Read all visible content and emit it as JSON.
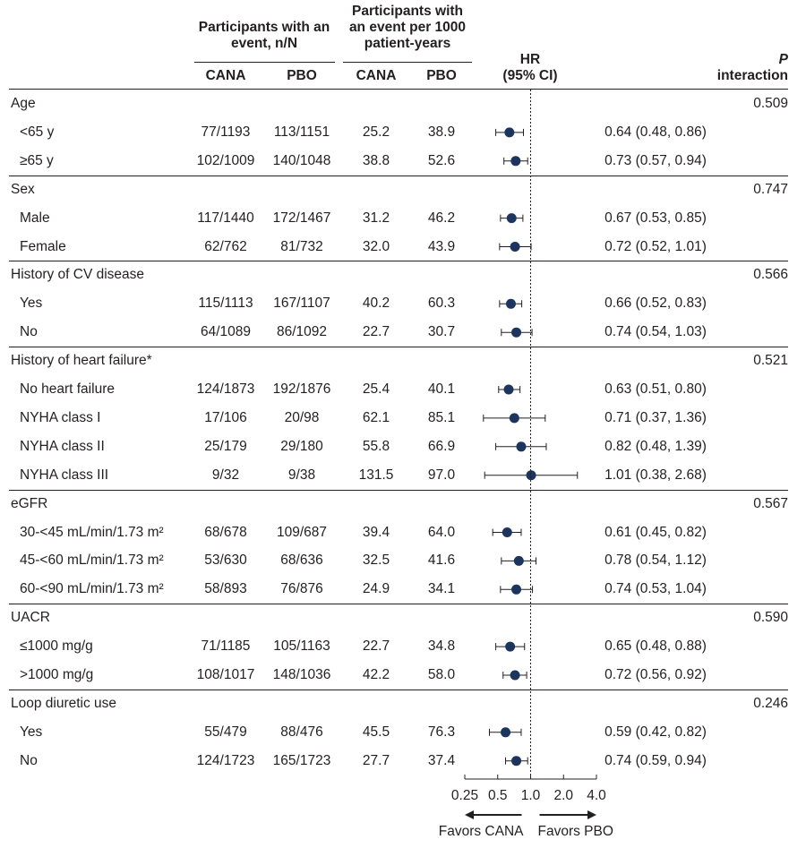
{
  "headers": {
    "group1": "Participants with an event, n/N",
    "group2": "Participants with an event per 1000 patient-years",
    "cana1": "CANA",
    "pbo1": "PBO",
    "cana2": "CANA",
    "pbo2": "PBO",
    "hr_title": "HR",
    "hr_sub": "(95% CI)",
    "p_title": "P",
    "p_sub": "interaction"
  },
  "chart_data": {
    "type": "forest",
    "x_scale": "log",
    "x_ticks": [
      "0.25",
      "0.5",
      "1.0",
      "2.0",
      "4.0"
    ],
    "x_tick_values": [
      0.25,
      0.5,
      1.0,
      2.0,
      4.0
    ],
    "reference_line": 1.0,
    "favors_left": "Favors CANA",
    "favors_right": "Favors PBO",
    "groups": [
      {
        "label": "Age",
        "p": "0.509",
        "rows": [
          {
            "label": "<65 y",
            "cana_n": "77/1193",
            "pbo_n": "113/1151",
            "cana_rate": "25.2",
            "pbo_rate": "38.9",
            "hr": 0.64,
            "lo": 0.48,
            "hi": 0.86,
            "hr_text": "0.64 (0.48, 0.86)"
          },
          {
            "label": "≥65 y",
            "cana_n": "102/1009",
            "pbo_n": "140/1048",
            "cana_rate": "38.8",
            "pbo_rate": "52.6",
            "hr": 0.73,
            "lo": 0.57,
            "hi": 0.94,
            "hr_text": "0.73 (0.57, 0.94)"
          }
        ]
      },
      {
        "label": "Sex",
        "p": "0.747",
        "rows": [
          {
            "label": "Male",
            "cana_n": "117/1440",
            "pbo_n": "172/1467",
            "cana_rate": "31.2",
            "pbo_rate": "46.2",
            "hr": 0.67,
            "lo": 0.53,
            "hi": 0.85,
            "hr_text": "0.67 (0.53, 0.85)"
          },
          {
            "label": "Female",
            "cana_n": "62/762",
            "pbo_n": "81/732",
            "cana_rate": "32.0",
            "pbo_rate": "43.9",
            "hr": 0.72,
            "lo": 0.52,
            "hi": 1.01,
            "hr_text": "0.72 (0.52, 1.01)"
          }
        ]
      },
      {
        "label": "History of CV disease",
        "p": "0.566",
        "rows": [
          {
            "label": "Yes",
            "cana_n": "115/1113",
            "pbo_n": "167/1107",
            "cana_rate": "40.2",
            "pbo_rate": "60.3",
            "hr": 0.66,
            "lo": 0.52,
            "hi": 0.83,
            "hr_text": "0.66 (0.52, 0.83)"
          },
          {
            "label": "No",
            "cana_n": "64/1089",
            "pbo_n": "86/1092",
            "cana_rate": "22.7",
            "pbo_rate": "30.7",
            "hr": 0.74,
            "lo": 0.54,
            "hi": 1.03,
            "hr_text": "0.74 (0.54, 1.03)"
          }
        ]
      },
      {
        "label": "History of heart failure*",
        "p": "0.521",
        "rows": [
          {
            "label": "No heart failure",
            "cana_n": "124/1873",
            "pbo_n": "192/1876",
            "cana_rate": "25.4",
            "pbo_rate": "40.1",
            "hr": 0.63,
            "lo": 0.51,
            "hi": 0.8,
            "hr_text": "0.63 (0.51, 0.80)"
          },
          {
            "label": "NYHA class I",
            "cana_n": "17/106",
            "pbo_n": "20/98",
            "cana_rate": "62.1",
            "pbo_rate": "85.1",
            "hr": 0.71,
            "lo": 0.37,
            "hi": 1.36,
            "hr_text": "0.71 (0.37, 1.36)"
          },
          {
            "label": "NYHA class II",
            "cana_n": "25/179",
            "pbo_n": "29/180",
            "cana_rate": "55.8",
            "pbo_rate": "66.9",
            "hr": 0.82,
            "lo": 0.48,
            "hi": 1.39,
            "hr_text": "0.82 (0.48, 1.39)"
          },
          {
            "label": "NYHA class III",
            "cana_n": "9/32",
            "pbo_n": "9/38",
            "cana_rate": "131.5",
            "pbo_rate": "97.0",
            "hr": 1.01,
            "lo": 0.38,
            "hi": 2.68,
            "hr_text": "1.01 (0.38, 2.68)"
          }
        ]
      },
      {
        "label": "eGFR",
        "p": "0.567",
        "rows": [
          {
            "label": "30-<45 mL/min/1.73 m²",
            "cana_n": "68/678",
            "pbo_n": "109/687",
            "cana_rate": "39.4",
            "pbo_rate": "64.0",
            "hr": 0.61,
            "lo": 0.45,
            "hi": 0.82,
            "hr_text": "0.61 (0.45, 0.82)"
          },
          {
            "label": "45-<60 mL/min/1.73 m²",
            "cana_n": "53/630",
            "pbo_n": "68/636",
            "cana_rate": "32.5",
            "pbo_rate": "41.6",
            "hr": 0.78,
            "lo": 0.54,
            "hi": 1.12,
            "hr_text": "0.78 (0.54, 1.12)"
          },
          {
            "label": "60-<90 mL/min/1.73 m²",
            "cana_n": "58/893",
            "pbo_n": "76/876",
            "cana_rate": "24.9",
            "pbo_rate": "34.1",
            "hr": 0.74,
            "lo": 0.53,
            "hi": 1.04,
            "hr_text": "0.74 (0.53, 1.04)"
          }
        ]
      },
      {
        "label": "UACR",
        "p": "0.590",
        "rows": [
          {
            "label": "≤1000 mg/g",
            "cana_n": "71/1185",
            "pbo_n": "105/1163",
            "cana_rate": "22.7",
            "pbo_rate": "34.8",
            "hr": 0.65,
            "lo": 0.48,
            "hi": 0.88,
            "hr_text": "0.65 (0.48, 0.88)"
          },
          {
            "label": ">1000 mg/g",
            "cana_n": "108/1017",
            "pbo_n": "148/1036",
            "cana_rate": "42.2",
            "pbo_rate": "58.0",
            "hr": 0.72,
            "lo": 0.56,
            "hi": 0.92,
            "hr_text": "0.72 (0.56, 0.92)"
          }
        ]
      },
      {
        "label": "Loop diuretic use",
        "p": "0.246",
        "rows": [
          {
            "label": "Yes",
            "cana_n": "55/479",
            "pbo_n": "88/476",
            "cana_rate": "45.5",
            "pbo_rate": "76.3",
            "hr": 0.59,
            "lo": 0.42,
            "hi": 0.82,
            "hr_text": "0.59 (0.42, 0.82)"
          },
          {
            "label": "No",
            "cana_n": "124/1723",
            "pbo_n": "165/1723",
            "cana_rate": "27.7",
            "pbo_rate": "37.4",
            "hr": 0.74,
            "lo": 0.59,
            "hi": 0.94,
            "hr_text": "0.74 (0.59, 0.94)"
          }
        ]
      }
    ],
    "colors": {
      "marker": "#1c355e",
      "text": "#231f20"
    }
  }
}
